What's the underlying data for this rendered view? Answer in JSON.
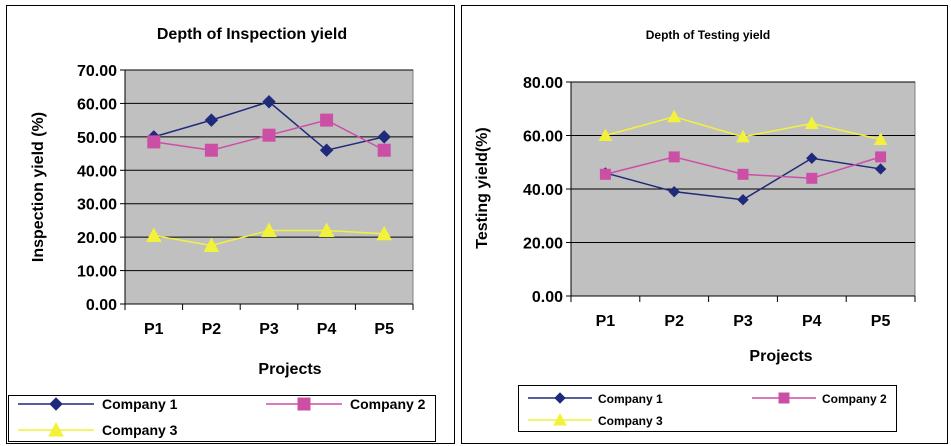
{
  "chart_data": [
    {
      "type": "line",
      "title": "Depth of Inspection yield",
      "xlabel": "Projects",
      "ylabel": "Inspection yield (%)",
      "categories": [
        "P1",
        "P2",
        "P3",
        "P4",
        "P5"
      ],
      "ylim": [
        0,
        70
      ],
      "yticks": [
        "0.00",
        "10.00",
        "20.00",
        "30.00",
        "40.00",
        "50.00",
        "60.00",
        "70.00"
      ],
      "grid": true,
      "legend_position": "bottom",
      "series": [
        {
          "name": "Company 1",
          "values": [
            50,
            55,
            60.5,
            46,
            50
          ],
          "color": "#1f2a7a",
          "marker": "diamond"
        },
        {
          "name": "Company 2",
          "values": [
            48.5,
            46,
            50.5,
            55,
            46
          ],
          "color": "#cc4fa6",
          "marker": "square"
        },
        {
          "name": "Company 3",
          "values": [
            20.5,
            17.5,
            22,
            22,
            21
          ],
          "color": "#f2f23a",
          "marker": "triangle"
        }
      ]
    },
    {
      "type": "line",
      "title": "Depth of Testing yield",
      "xlabel": "Projects",
      "ylabel": "Testing yield(%)",
      "categories": [
        "P1",
        "P2",
        "P3",
        "P4",
        "P5"
      ],
      "ylim": [
        0,
        80
      ],
      "yticks": [
        "0.00",
        "20.00",
        "40.00",
        "60.00",
        "80.00"
      ],
      "grid": true,
      "legend_position": "bottom",
      "series": [
        {
          "name": "Company 1",
          "values": [
            46,
            39,
            36,
            51.5,
            47.5
          ],
          "color": "#1f2a7a",
          "marker": "diamond"
        },
        {
          "name": "Company 2",
          "values": [
            45.5,
            52,
            45.5,
            44,
            52
          ],
          "color": "#cc4fa6",
          "marker": "square"
        },
        {
          "name": "Company 3",
          "values": [
            60,
            67,
            59.5,
            64.5,
            58.5
          ],
          "color": "#f2f23a",
          "marker": "triangle"
        }
      ]
    }
  ]
}
